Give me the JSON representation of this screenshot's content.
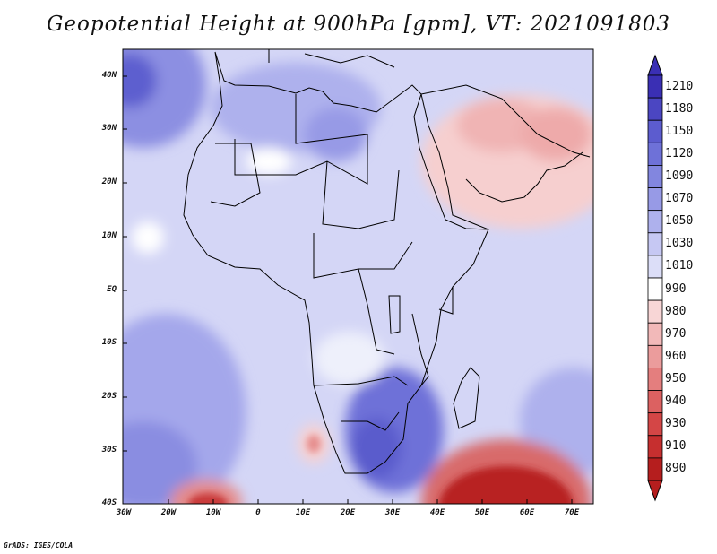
{
  "title": "Geopotential Height at 900hPa [gpm], VT: 2021091803",
  "footer": "GrADS: IGES/COLA",
  "map": {
    "region": "Africa and Middle East",
    "lon_range": [
      -30,
      75
    ],
    "lat_range": [
      -40,
      45
    ],
    "y_ticks": [
      "40N",
      "30N",
      "20N",
      "10N",
      "EQ",
      "10S",
      "20S",
      "30S",
      "40S"
    ],
    "x_ticks": [
      "30W",
      "20W",
      "10W",
      "0",
      "10E",
      "20E",
      "30E",
      "40E",
      "50E",
      "60E",
      "70E"
    ]
  },
  "colorbar": {
    "labels": [
      "1210",
      "1180",
      "1150",
      "1120",
      "1090",
      "1070",
      "1050",
      "1030",
      "1010",
      "990",
      "980",
      "970",
      "960",
      "950",
      "940",
      "930",
      "910",
      "890"
    ],
    "colors": [
      "#3a2fb4",
      "#4b46c2",
      "#5c5ccf",
      "#6e71d8",
      "#8286df",
      "#979ae6",
      "#aeb1ed",
      "#c6c8f3",
      "#dcdef8",
      "#ffffff",
      "#f8d6d6",
      "#f2b9b9",
      "#eb9c9c",
      "#e47e7e",
      "#dc6161",
      "#d44646",
      "#c62f2f",
      "#b51e1e"
    ]
  }
}
